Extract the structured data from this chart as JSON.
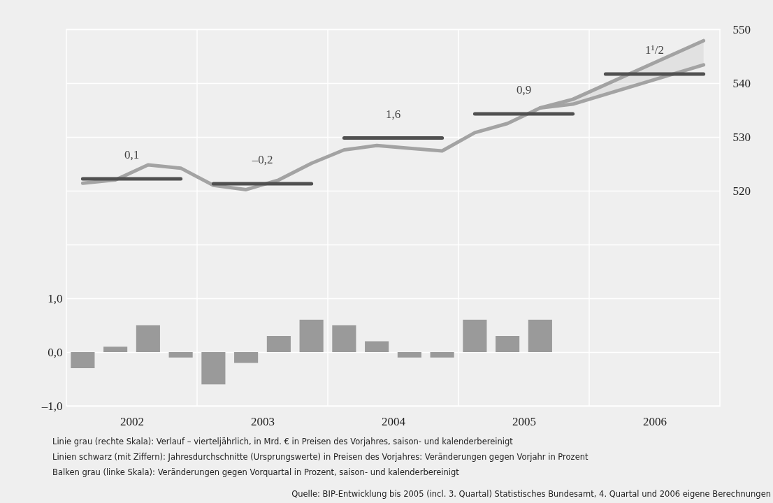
{
  "chart_data": {
    "type": "bar",
    "xlim": [
      2001.5,
      2006.5
    ],
    "xticks": [
      2002,
      {
        "value": 2002.5,
        "label": null
      },
      2003,
      {
        "value": 2003.5,
        "label": null
      },
      2004,
      {
        "value": 2004.5,
        "label": null
      },
      2005,
      {
        "value": 2005.5,
        "label": null
      },
      2006
    ],
    "ylim": [
      -1,
      6
    ],
    "yticks": [
      {
        "value": -1,
        "label": "–1,0"
      },
      {
        "value": 0,
        "label": "0,0"
      },
      {
        "value": 1,
        "label": "1,0"
      },
      {
        "value": 2,
        "label": null
      },
      {
        "value": 3,
        "label": null
      },
      {
        "value": 4,
        "label": null
      },
      {
        "value": 5,
        "label": null
      },
      {
        "value": 6,
        "label": null
      }
    ],
    "y2lim": [
      480,
      550
    ],
    "y2ticks": [
      520,
      530,
      540,
      550
    ],
    "grid": true,
    "series": [
      {
        "color": "#9a9a9a",
        "x": [
          2001.625,
          2001.875,
          2002.125,
          2002.375,
          2002.625,
          2002.875,
          2003.125,
          2003.375,
          2003.625,
          2003.875,
          2004.125,
          2004.375,
          2004.625,
          2004.875,
          2005.125
        ],
        "values": [
          -0.3,
          0.1,
          0.5,
          -0.1,
          -0.6,
          -0.2,
          0.3,
          0.6,
          0.5,
          0.2,
          -0.1,
          -0.1,
          0.6,
          0.3,
          0.6
        ]
      },
      {
        "type": "line",
        "axis": "y2",
        "color": "#a3a3a3",
        "x": [
          2001.625,
          2001.875,
          2002.125,
          2002.375,
          2002.625,
          2002.875,
          2003.125,
          2003.375,
          2003.625,
          2003.875,
          2004.125,
          2004.375,
          2004.625,
          2004.875,
          2005.125,
          2005.375,
          2006.375
        ],
        "values": [
          521.4,
          522.0,
          524.8,
          524.2,
          521.0,
          520.2,
          522.0,
          525.1,
          527.6,
          528.4,
          527.9,
          527.4,
          530.8,
          532.5,
          535.4,
          537.0,
          547.9
        ]
      },
      {
        "type": "line",
        "axis": "y2",
        "color": "#a3a3a3",
        "x": [
          2005.125,
          2005.375,
          2006.375
        ],
        "values": [
          535.4,
          536.1,
          543.4
        ],
        "lower": [
          535.4,
          536.1,
          543.4
        ],
        "upper": [
          535.4,
          537.0,
          547.9
        ]
      },
      {
        "type": "line",
        "axis": "y2",
        "name": "0,1",
        "color": "#505050",
        "x": [
          2001.625,
          2002.375
        ],
        "values": [
          522.2,
          522.2
        ]
      },
      {
        "type": "line",
        "axis": "y2",
        "name": "–0,2",
        "color": "#505050",
        "x": [
          2002.625,
          2003.375
        ],
        "values": [
          521.3,
          521.3
        ]
      },
      {
        "type": "line",
        "axis": "y2",
        "name": "1,6",
        "color": "#505050",
        "x": [
          2003.625,
          2004.375
        ],
        "values": [
          529.8,
          529.8
        ]
      },
      {
        "type": "line",
        "axis": "y2",
        "name": "0,9",
        "color": "#505050",
        "x": [
          2004.625,
          2005.375
        ],
        "values": [
          534.3,
          534.3
        ]
      },
      {
        "type": "line",
        "axis": "y2",
        "name": "1¹/2",
        "color": "#505050",
        "x": [
          2005.625,
          2006.375
        ],
        "values": [
          541.7,
          541.7
        ]
      }
    ],
    "annotations": [
      "Linie grau (rechte Skala): Verlauf – vierteljährlich,  in Mrd. € in Preisen des Vorjahres, saison- und kalenderbereinigt",
      "Linien schwarz (mit Ziffern): Jahresdurchschnitte (Ursprungswerte) in Preisen des Vorjahres: Veränderungen gegen Vorjahr in Prozent",
      "Balken grau (linke Skala): Veränderungen gegen Vorquartal in Prozent, saison- und kalenderbereinigt",
      "Quelle: BIP-Entwicklung bis 2005 (incl. 3. Quartal) Statistisches Bundesamt, 4. Quartal und 2006 eigene Berechnungen"
    ]
  }
}
